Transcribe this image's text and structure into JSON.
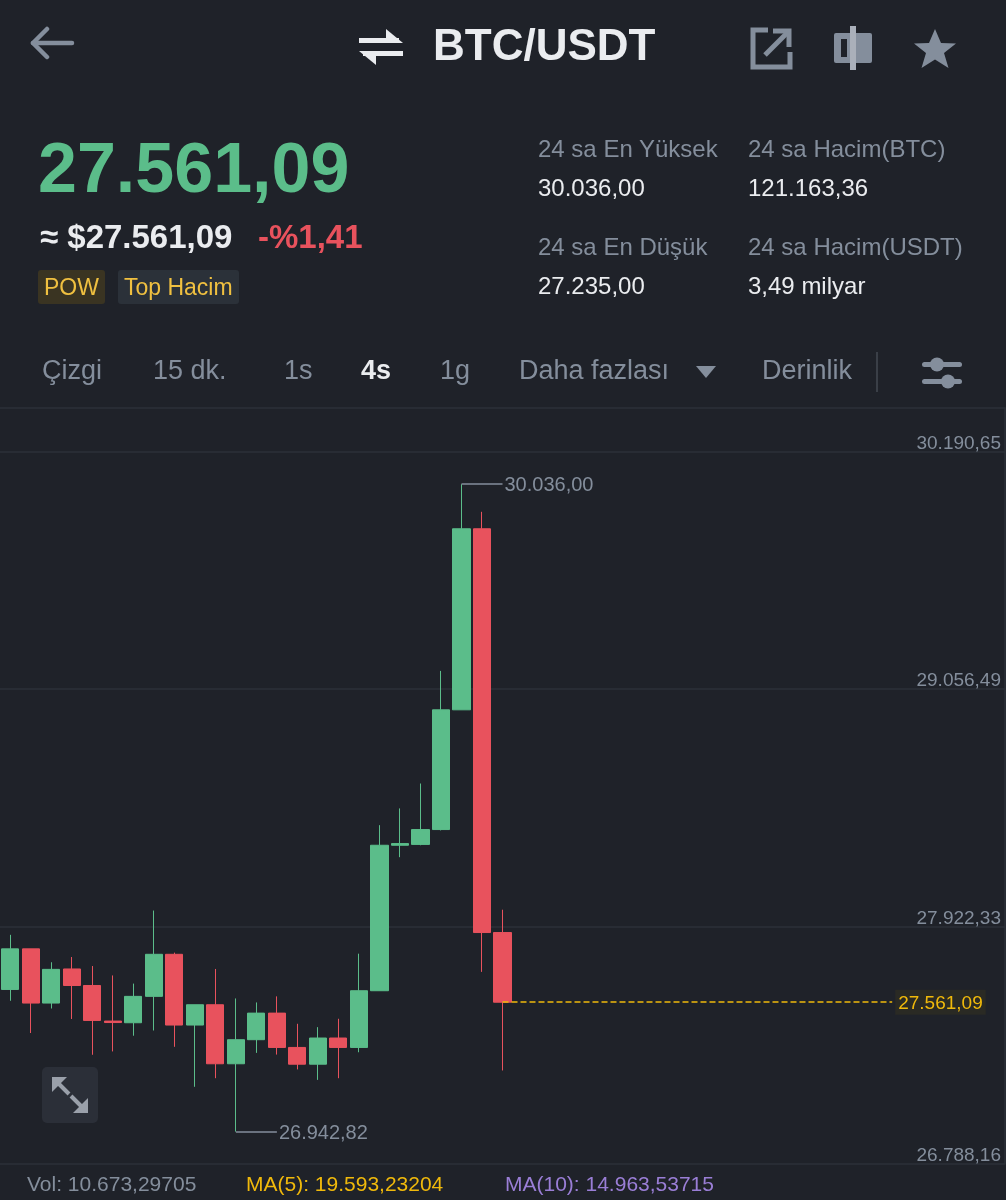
{
  "chart_data": {
    "type": "candlestick",
    "title": "BTC/USDT",
    "categories": [
      null,
      null,
      null,
      null,
      null,
      null,
      null,
      null,
      null,
      null,
      null,
      null,
      null,
      null,
      null,
      null,
      null,
      null,
      null,
      null,
      null,
      null,
      null,
      null,
      null,
      null,
      null,
      null,
      null,
      null,
      null,
      null,
      null,
      null,
      null,
      null,
      null,
      null,
      null,
      null,
      null,
      null,
      null,
      null,
      null,
      null,
      null,
      null,
      null
    ],
    "ohlc": [
      [
        27622,
        27883,
        27568,
        27816
      ],
      [
        27816,
        27816,
        27414,
        27557
      ],
      [
        27557,
        27752,
        27531,
        27718
      ],
      [
        27720,
        27777,
        27481,
        27641
      ],
      [
        27641,
        27734,
        27310,
        27474
      ],
      [
        27471,
        27689,
        27326,
        27464
      ],
      [
        27463,
        27650,
        27401,
        27589
      ],
      [
        27589,
        27999,
        27426,
        27790
      ],
      [
        27790,
        27798,
        27348,
        27452
      ],
      [
        27452,
        27549,
        27157,
        27549
      ],
      [
        27549,
        27720,
        27198,
        27267
      ],
      [
        27267,
        27579,
        26942.82,
        27382
      ],
      [
        27382,
        27560,
        27319,
        27509
      ],
      [
        27509,
        27589,
        27311,
        27345
      ],
      [
        27345,
        27458,
        27240,
        27265
      ],
      [
        27265,
        27442,
        27190,
        27390
      ],
      [
        27390,
        27482,
        27198,
        27345
      ],
      [
        27345,
        27793,
        27322,
        27616
      ],
      [
        27616,
        28407,
        27616,
        28311
      ],
      [
        28311,
        28487,
        28254,
        28319
      ],
      [
        28315,
        28606,
        28311,
        28386
      ],
      [
        28386,
        29144,
        28382,
        28958
      ],
      [
        28958,
        30036,
        28958,
        29823
      ],
      [
        29823,
        29904,
        27706,
        27894
      ],
      [
        27894,
        28003,
        27235,
        27561.09
      ],
      null,
      null,
      null,
      null,
      null,
      null,
      null,
      null,
      null,
      null,
      null,
      null,
      null,
      null,
      null,
      null,
      null,
      null,
      null,
      null,
      null,
      null,
      null,
      null
    ],
    "colors": [
      "#5bbd8a",
      "#e8525d",
      "#5bbd8a",
      "#e8525d",
      "#e8525d",
      "#e8525d",
      "#5bbd8a",
      "#5bbd8a",
      "#e8525d",
      "#5bbd8a",
      "#e8525d",
      "#5bbd8a",
      "#5bbd8a",
      "#e8525d",
      "#e8525d",
      "#5bbd8a",
      "#e8525d",
      "#5bbd8a",
      "#5bbd8a",
      "#5bbd8a",
      "#5bbd8a",
      "#5bbd8a",
      "#5bbd8a",
      "#e8525d",
      "#e8525d",
      null,
      null,
      null,
      null,
      null,
      null,
      null,
      null,
      null,
      null,
      null,
      null,
      null,
      null,
      null,
      null,
      null,
      null,
      null,
      null,
      null,
      null,
      null,
      null
    ],
    "ylim": [
      26788.16,
      30400
    ],
    "yticks": [
      {
        "value": 26788.16,
        "label": "26.788,16"
      },
      {
        "value": 27922.33,
        "label": "27.922,33"
      },
      {
        "value": 29056.49,
        "label": "29.056,49"
      },
      {
        "value": 30190.65,
        "label": "30.190,65"
      }
    ],
    "grid": true,
    "tick_labels": "y",
    "ref_lines": [
      {
        "axis": "y",
        "value": 27561.09,
        "label": "27.561,09",
        "color": "#f0b90b",
        "line_style": "dashed"
      }
    ],
    "annotations": [
      "27.561,09",
      "≈ $27.561,09",
      "-%1,41",
      "POW",
      "Top Hacim",
      "24 sa En Yüksek",
      "30.036,00",
      "24 sa Hacim(BTC)",
      "121.163,36",
      "24 sa En Düşük",
      "27.235,00",
      "24 sa Hacim(USDT)",
      "3,49 milyar",
      "Çizgi",
      "15 dk.",
      "1s",
      "4s",
      "1g",
      "Daha fazlası",
      "Derinlik",
      "30.036,00",
      "26.942,82",
      "Vol: 10.673,29705",
      "MA(5): 19.593,23204",
      "MA(10): 14.963,53715"
    ]
  }
}
